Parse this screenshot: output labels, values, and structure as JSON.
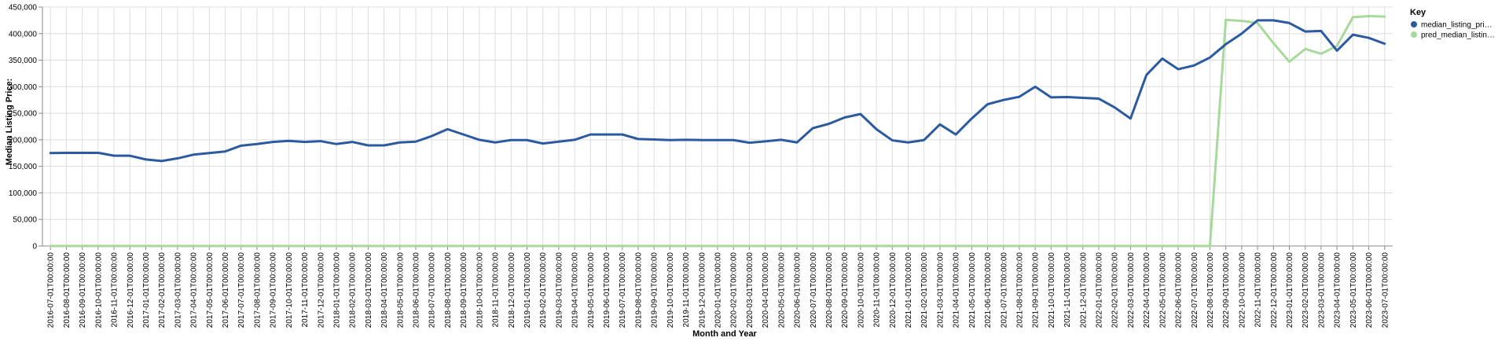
{
  "chart_data": {
    "type": "line",
    "xlabel": "Month and Year",
    "ylabel": "Median Listing Price:",
    "ylim": [
      0,
      450000
    ],
    "yticks": [
      0,
      50000,
      100000,
      150000,
      200000,
      250000,
      300000,
      350000,
      400000,
      450000
    ],
    "ytick_labels": [
      "0",
      "50,000",
      "100,000",
      "150,000",
      "200,000",
      "250,000",
      "300,000",
      "350,000",
      "400,000",
      "450,000"
    ],
    "grid": true,
    "legend": {
      "title": "Key",
      "placement": "right",
      "entries": [
        "median_listing_pri…",
        "pred_median_listin…"
      ]
    },
    "colors": {
      "median": "#2c5aa0",
      "pred": "#a6d99a"
    },
    "x": [
      "2016-07-01T00:00:00",
      "2016-08-01T00:00:00",
      "2016-09-01T00:00:00",
      "2016-10-01T00:00:00",
      "2016-11-01T00:00:00",
      "2016-12-01T00:00:00",
      "2017-01-01T00:00:00",
      "2017-02-01T00:00:00",
      "2017-03-01T00:00:00",
      "2017-04-01T00:00:00",
      "2017-05-01T00:00:00",
      "2017-06-01T00:00:00",
      "2017-07-01T00:00:00",
      "2017-08-01T00:00:00",
      "2017-09-01T00:00:00",
      "2017-10-01T00:00:00",
      "2017-11-01T00:00:00",
      "2017-12-01T00:00:00",
      "2018-01-01T00:00:00",
      "2018-02-01T00:00:00",
      "2018-03-01T00:00:00",
      "2018-04-01T00:00:00",
      "2018-05-01T00:00:00",
      "2018-06-01T00:00:00",
      "2018-07-01T00:00:00",
      "2018-08-01T00:00:00",
      "2018-09-01T00:00:00",
      "2018-10-01T00:00:00",
      "2018-11-01T00:00:00",
      "2018-12-01T00:00:00",
      "2019-01-01T00:00:00",
      "2019-02-01T00:00:00",
      "2019-03-01T00:00:00",
      "2019-04-01T00:00:00",
      "2019-05-01T00:00:00",
      "2019-06-01T00:00:00",
      "2019-07-01T00:00:00",
      "2019-08-01T00:00:00",
      "2019-09-01T00:00:00",
      "2019-10-01T00:00:00",
      "2019-11-01T00:00:00",
      "2019-12-01T00:00:00",
      "2020-01-01T00:00:00",
      "2020-02-01T00:00:00",
      "2020-03-01T00:00:00",
      "2020-04-01T00:00:00",
      "2020-05-01T00:00:00",
      "2020-06-01T00:00:00",
      "2020-07-01T00:00:00",
      "2020-08-01T00:00:00",
      "2020-09-01T00:00:00",
      "2020-10-01T00:00:00",
      "2020-11-01T00:00:00",
      "2020-12-01T00:00:00",
      "2021-01-01T00:00:00",
      "2021-02-01T00:00:00",
      "2021-03-01T00:00:00",
      "2021-04-01T00:00:00",
      "2021-05-01T00:00:00",
      "2021-06-01T00:00:00",
      "2021-07-01T00:00:00",
      "2021-08-01T00:00:00",
      "2021-09-01T00:00:00",
      "2021-10-01T00:00:00",
      "2021-11-01T00:00:00",
      "2021-12-01T00:00:00",
      "2022-01-01T00:00:00",
      "2022-02-01T00:00:00",
      "2022-03-01T00:00:00",
      "2022-04-01T00:00:00",
      "2022-05-01T00:00:00",
      "2022-06-01T00:00:00",
      "2022-07-01T00:00:00",
      "2022-08-01T00:00:00",
      "2022-09-01T00:00:00",
      "2022-10-01T00:00:00",
      "2022-11-01T00:00:00",
      "2022-12-01T00:00:00",
      "2023-01-01T00:00:00",
      "2023-02-01T00:00:00",
      "2023-03-01T00:00:00",
      "2023-04-01T00:00:00",
      "2023-05-01T00:00:00",
      "2023-06-01T00:00:00",
      "2023-07-01T00:00:00"
    ],
    "series": [
      {
        "name": "median_listing_pri…",
        "values": [
          175000,
          175500,
          175500,
          175500,
          170000,
          170000,
          163000,
          160000,
          165000,
          172000,
          175000,
          178000,
          189000,
          192000,
          196000,
          198000,
          196000,
          197500,
          192000,
          196000,
          189500,
          189500,
          195000,
          196500,
          207000,
          220000,
          210000,
          200000,
          195000,
          199500,
          199500,
          193000,
          196500,
          200000,
          210000,
          210000,
          210000,
          201500,
          200500,
          199500,
          200000,
          199500,
          199500,
          199500,
          194500,
          197000,
          200000,
          195000,
          222000,
          230000,
          242000,
          248500,
          220000,
          199000,
          195000,
          199500,
          229000,
          210000,
          240000,
          267000,
          275000,
          281000,
          300000,
          280000,
          280500,
          279000,
          277500,
          261000,
          240000,
          322000,
          353000,
          333000,
          340000,
          355000,
          380000,
          400000,
          425000,
          425000,
          420000,
          404000,
          405000,
          368000,
          398000,
          392000,
          381000
        ]
      },
      {
        "name": "pred_median_listin…",
        "values": [
          0,
          0,
          0,
          0,
          0,
          0,
          0,
          0,
          0,
          0,
          0,
          0,
          0,
          0,
          0,
          0,
          0,
          0,
          0,
          0,
          0,
          0,
          0,
          0,
          0,
          0,
          0,
          0,
          0,
          0,
          0,
          0,
          0,
          0,
          0,
          0,
          0,
          0,
          0,
          0,
          0,
          0,
          0,
          0,
          0,
          0,
          0,
          0,
          0,
          0,
          0,
          0,
          0,
          0,
          0,
          0,
          0,
          0,
          0,
          0,
          0,
          0,
          0,
          0,
          0,
          0,
          0,
          0,
          0,
          0,
          0,
          0,
          0,
          0,
          426000,
          424000,
          420000,
          382000,
          347000,
          371000,
          362000,
          377000,
          431000,
          433000,
          432000
        ]
      }
    ]
  }
}
